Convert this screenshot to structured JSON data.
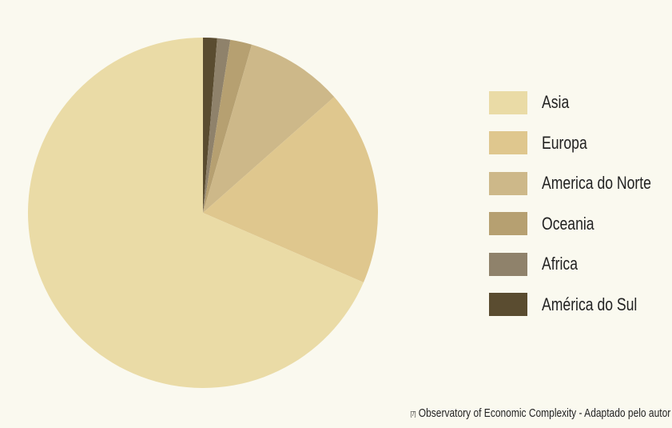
{
  "chart_data": {
    "type": "pie",
    "start_angle": "top",
    "direction": "clockwise",
    "slices": [
      {
        "label": "Asia",
        "value": 68.5,
        "color": "#EADBA6"
      },
      {
        "label": "Europa",
        "value": 18.0,
        "color": "#DFC78E"
      },
      {
        "label": "America do Norte",
        "value": 9.0,
        "color": "#CDB889"
      },
      {
        "label": "Oceania",
        "value": 2.0,
        "color": "#B6A071"
      },
      {
        "label": "Africa",
        "value": 1.2,
        "color": "#8F826B"
      },
      {
        "label": "América do Sul",
        "value": 1.3,
        "color": "#5A4C30"
      }
    ],
    "legend_order": [
      "Asia",
      "Europa",
      "America do Norte",
      "Oceania",
      "Africa",
      "América do Sul"
    ],
    "legend_position": "right",
    "title": ""
  },
  "legend": {
    "items": [
      {
        "label": "Asia",
        "color": "#EADBA6"
      },
      {
        "label": "Europa",
        "color": "#DFC78E"
      },
      {
        "label": "America do Norte",
        "color": "#CDB889"
      },
      {
        "label": "Oceania",
        "color": "#B6A071"
      },
      {
        "label": "Africa",
        "color": "#8F826B"
      },
      {
        "label": "América do Sul",
        "color": "#5A4C30"
      }
    ]
  },
  "source": {
    "ref": "[7]",
    "text": "Observatory of Economic Complexity - Adaptado pelo autor"
  },
  "colors": {
    "background": "#FAF9EF"
  }
}
